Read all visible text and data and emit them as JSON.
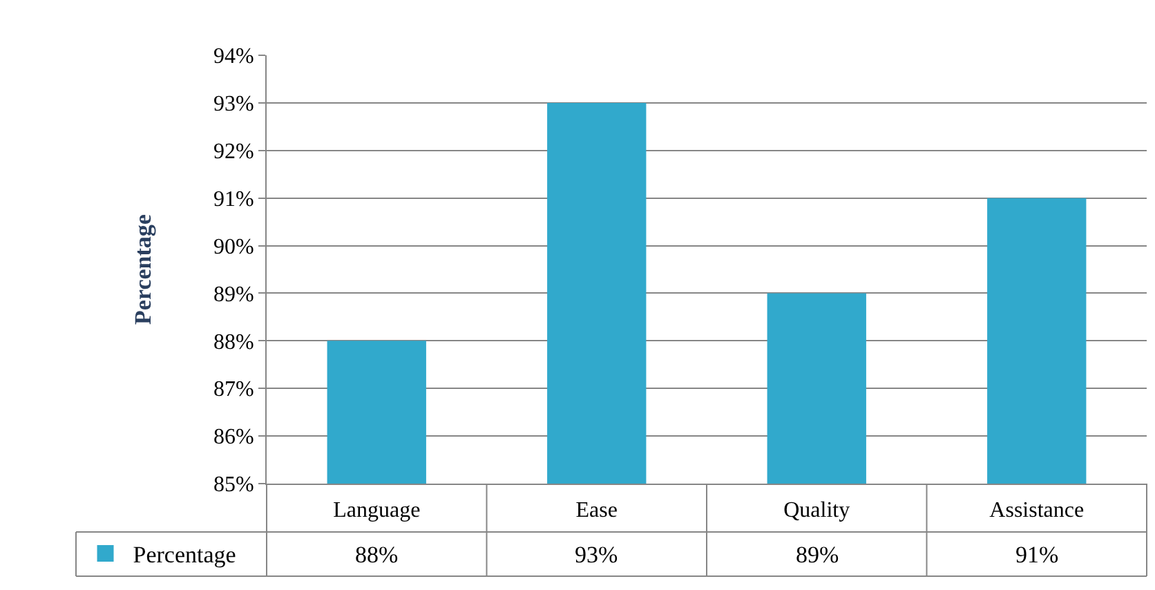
{
  "chart_data": {
    "type": "bar",
    "ylabel": "Percentage",
    "categories": [
      "Language",
      "Ease",
      "Quality",
      "Assistance"
    ],
    "series": [
      {
        "name": "Percentage",
        "color": "#31a9cc",
        "values": [
          88,
          93,
          89,
          91
        ],
        "value_labels": [
          "88%",
          "93%",
          "89%",
          "91%"
        ]
      }
    ],
    "ylim": [
      85,
      94
    ],
    "yticks": [
      {
        "value": 85,
        "label": "85%"
      },
      {
        "value": 86,
        "label": "86%"
      },
      {
        "value": 87,
        "label": "87%"
      },
      {
        "value": 88,
        "label": "88%"
      },
      {
        "value": 89,
        "label": "89%"
      },
      {
        "value": 90,
        "label": "90%"
      },
      {
        "value": 91,
        "label": "91%"
      },
      {
        "value": 92,
        "label": "92%"
      },
      {
        "value": 93,
        "label": "93%"
      },
      {
        "value": 94,
        "label": "94%"
      }
    ],
    "grid": "y",
    "legend": "bottom"
  }
}
